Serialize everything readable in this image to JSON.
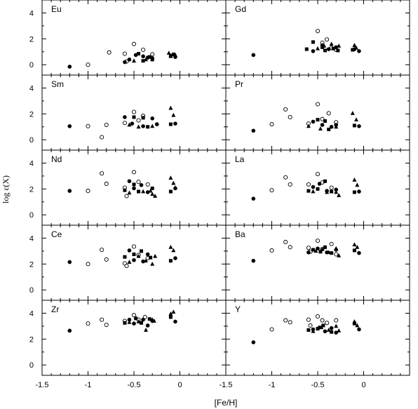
{
  "chart_data": {
    "type": "scatter",
    "xlabel": "[Fe/H]",
    "ylabel": "log ε(X)",
    "xlim": [
      -1.5,
      0.5
    ],
    "ylim": [
      -0.8,
      5.0
    ],
    "x_ticks": [
      -1.5,
      -1,
      -0.5,
      0
    ],
    "x_tick_labels": [
      "-1.5",
      "-1",
      "-0.5",
      "0"
    ],
    "y_ticks": [
      0,
      2,
      4
    ],
    "y_tick_labels": [
      "0",
      "2",
      "4"
    ],
    "grid": false,
    "legend": "none",
    "marker_styles": {
      "open_circle": "open circle",
      "filled_circle": "filled circle",
      "filled_square": "filled square",
      "filled_triangle": "filled triangle"
    },
    "panels": [
      {
        "element": "Eu",
        "open_circle": [
          [
            -1.0,
            0.0
          ],
          [
            -0.77,
            0.95
          ],
          [
            -0.6,
            0.85
          ],
          [
            -0.58,
            0.25
          ],
          [
            -0.5,
            1.6
          ],
          [
            -0.4,
            1.15
          ],
          [
            -0.3,
            0.8
          ]
        ],
        "filled_circle": [
          [
            -1.2,
            -0.15
          ],
          [
            -0.6,
            0.2
          ],
          [
            -0.55,
            0.4
          ],
          [
            -0.48,
            0.75
          ],
          [
            -0.4,
            0.65
          ],
          [
            -0.35,
            0.55
          ],
          [
            -0.3,
            0.5
          ],
          [
            -0.05,
            0.6
          ]
        ],
        "filled_square": [
          [
            -0.45,
            0.85
          ],
          [
            -0.4,
            0.3
          ],
          [
            -0.33,
            0.6
          ],
          [
            -0.3,
            0.4
          ],
          [
            -0.1,
            0.7
          ],
          [
            -0.07,
            0.8
          ]
        ],
        "filled_triangle": [
          [
            -0.5,
            0.3
          ],
          [
            -0.37,
            0.4
          ],
          [
            -0.3,
            0.55
          ],
          [
            -0.12,
            0.9
          ],
          [
            -0.1,
            0.65
          ],
          [
            -0.05,
            0.75
          ]
        ]
      },
      {
        "element": "Gd",
        "open_circle": [
          [
            -0.5,
            2.6
          ],
          [
            -0.4,
            1.95
          ],
          [
            -0.35,
            1.3
          ],
          [
            -0.3,
            1.15
          ],
          [
            -0.45,
            1.7
          ]
        ],
        "filled_circle": [
          [
            -1.2,
            0.75
          ],
          [
            -0.55,
            1.05
          ],
          [
            -0.45,
            1.5
          ],
          [
            -0.38,
            1.2
          ],
          [
            -0.3,
            1.35
          ],
          [
            -0.1,
            1.2
          ],
          [
            -0.05,
            1.05
          ]
        ],
        "filled_square": [
          [
            -0.62,
            1.2
          ],
          [
            -0.55,
            1.75
          ],
          [
            -0.45,
            1.35
          ],
          [
            -0.42,
            1.1
          ],
          [
            -0.33,
            1.25
          ],
          [
            -0.28,
            1.1
          ],
          [
            -0.12,
            1.15
          ]
        ],
        "filled_triangle": [
          [
            -0.5,
            1.25
          ],
          [
            -0.43,
            1.45
          ],
          [
            -0.35,
            1.6
          ],
          [
            -0.27,
            1.45
          ],
          [
            -0.1,
            1.5
          ],
          [
            -0.08,
            1.3
          ]
        ]
      },
      {
        "element": "Sm",
        "open_circle": [
          [
            -1.0,
            1.05
          ],
          [
            -0.85,
            0.2
          ],
          [
            -0.8,
            1.15
          ],
          [
            -0.6,
            1.3
          ],
          [
            -0.5,
            2.15
          ],
          [
            -0.45,
            1.5
          ],
          [
            -0.4,
            1.85
          ]
        ],
        "filled_circle": [
          [
            -1.2,
            1.05
          ],
          [
            -0.6,
            1.75
          ],
          [
            -0.52,
            1.25
          ],
          [
            -0.4,
            1.05
          ],
          [
            -0.3,
            1.65
          ],
          [
            -0.25,
            1.2
          ],
          [
            -0.05,
            1.25
          ]
        ],
        "filled_square": [
          [
            -0.5,
            1.75
          ],
          [
            -0.4,
            1.7
          ],
          [
            -0.35,
            1.0
          ],
          [
            -0.1,
            1.2
          ]
        ],
        "filled_triangle": [
          [
            -0.55,
            1.15
          ],
          [
            -0.45,
            1.0
          ],
          [
            -0.3,
            1.05
          ],
          [
            -0.1,
            2.45
          ],
          [
            -0.07,
            1.9
          ]
        ]
      },
      {
        "element": "Pr",
        "open_circle": [
          [
            -1.0,
            1.2
          ],
          [
            -0.85,
            2.35
          ],
          [
            -0.8,
            1.75
          ],
          [
            -0.6,
            1.25
          ],
          [
            -0.5,
            2.75
          ],
          [
            -0.45,
            1.6
          ],
          [
            -0.38,
            2.05
          ],
          [
            -0.3,
            1.35
          ]
        ],
        "filled_circle": [
          [
            -1.2,
            0.7
          ],
          [
            -0.55,
            1.4
          ],
          [
            -0.45,
            1.15
          ],
          [
            -0.35,
            1.0
          ],
          [
            -0.3,
            1.15
          ],
          [
            -0.05,
            1.05
          ]
        ],
        "filled_square": [
          [
            -0.5,
            1.55
          ],
          [
            -0.42,
            1.45
          ],
          [
            -0.38,
            0.8
          ],
          [
            -0.1,
            1.1
          ]
        ],
        "filled_triangle": [
          [
            -0.6,
            1.05
          ],
          [
            -0.47,
            0.85
          ],
          [
            -0.3,
            1.0
          ],
          [
            -0.12,
            2.05
          ],
          [
            -0.08,
            1.55
          ]
        ]
      },
      {
        "element": "Nd",
        "open_circle": [
          [
            -1.0,
            1.85
          ],
          [
            -0.85,
            3.2
          ],
          [
            -0.8,
            2.4
          ],
          [
            -0.6,
            2.1
          ],
          [
            -0.58,
            1.45
          ],
          [
            -0.5,
            3.3
          ],
          [
            -0.45,
            2.55
          ],
          [
            -0.35,
            2.35
          ]
        ],
        "filled_circle": [
          [
            -1.2,
            1.85
          ],
          [
            -0.55,
            2.6
          ],
          [
            -0.5,
            2.05
          ],
          [
            -0.42,
            2.3
          ],
          [
            -0.35,
            1.75
          ],
          [
            -0.05,
            2.05
          ]
        ],
        "filled_square": [
          [
            -0.6,
            1.9
          ],
          [
            -0.5,
            2.35
          ],
          [
            -0.45,
            1.8
          ],
          [
            -0.3,
            2.05
          ],
          [
            -0.1,
            1.8
          ]
        ],
        "filled_triangle": [
          [
            -0.55,
            1.7
          ],
          [
            -0.4,
            1.8
          ],
          [
            -0.32,
            1.85
          ],
          [
            -0.3,
            1.6
          ],
          [
            -0.27,
            1.45
          ],
          [
            -0.1,
            2.85
          ],
          [
            -0.07,
            2.45
          ],
          [
            -0.05,
            2.1
          ]
        ]
      },
      {
        "element": "La",
        "open_circle": [
          [
            -1.0,
            1.9
          ],
          [
            -0.85,
            2.9
          ],
          [
            -0.8,
            2.35
          ],
          [
            -0.6,
            2.35
          ],
          [
            -0.5,
            3.15
          ],
          [
            -0.45,
            2.5
          ],
          [
            -0.35,
            2.1
          ]
        ],
        "filled_circle": [
          [
            -1.2,
            1.25
          ],
          [
            -0.55,
            2.15
          ],
          [
            -0.48,
            2.4
          ],
          [
            -0.4,
            1.85
          ],
          [
            -0.3,
            1.95
          ],
          [
            -0.05,
            1.8
          ]
        ],
        "filled_square": [
          [
            -0.6,
            1.85
          ],
          [
            -0.5,
            2.0
          ],
          [
            -0.42,
            2.6
          ],
          [
            -0.35,
            1.8
          ],
          [
            -0.1,
            1.75
          ]
        ],
        "filled_triangle": [
          [
            -0.55,
            1.8
          ],
          [
            -0.4,
            1.75
          ],
          [
            -0.3,
            1.75
          ],
          [
            -0.27,
            1.5
          ],
          [
            -0.1,
            2.7
          ],
          [
            -0.07,
            2.3
          ]
        ]
      },
      {
        "element": "Ce",
        "open_circle": [
          [
            -1.0,
            2.0
          ],
          [
            -0.85,
            3.1
          ],
          [
            -0.8,
            2.35
          ],
          [
            -0.6,
            2.05
          ],
          [
            -0.58,
            1.85
          ],
          [
            -0.5,
            3.35
          ],
          [
            -0.45,
            2.7
          ],
          [
            -0.35,
            2.45
          ]
        ],
        "filled_circle": [
          [
            -1.2,
            2.15
          ],
          [
            -0.55,
            3.05
          ],
          [
            -0.5,
            2.3
          ],
          [
            -0.4,
            2.2
          ],
          [
            -0.35,
            2.75
          ],
          [
            -0.05,
            2.45
          ]
        ],
        "filled_square": [
          [
            -0.6,
            2.55
          ],
          [
            -0.5,
            2.75
          ],
          [
            -0.42,
            3.0
          ],
          [
            -0.32,
            2.5
          ],
          [
            -0.1,
            2.25
          ]
        ],
        "filled_triangle": [
          [
            -0.55,
            2.15
          ],
          [
            -0.45,
            2.6
          ],
          [
            -0.37,
            2.25
          ],
          [
            -0.3,
            2.0
          ],
          [
            -0.27,
            2.6
          ],
          [
            -0.1,
            3.3
          ],
          [
            -0.07,
            3.05
          ]
        ]
      },
      {
        "element": "Ba",
        "open_circle": [
          [
            -1.0,
            3.05
          ],
          [
            -0.85,
            3.7
          ],
          [
            -0.8,
            3.3
          ],
          [
            -0.6,
            3.25
          ],
          [
            -0.58,
            2.95
          ],
          [
            -0.5,
            3.8
          ],
          [
            -0.45,
            3.15
          ],
          [
            -0.35,
            3.55
          ],
          [
            -0.3,
            2.75
          ]
        ],
        "filled_circle": [
          [
            -1.2,
            2.25
          ],
          [
            -0.6,
            2.9
          ],
          [
            -0.5,
            3.2
          ],
          [
            -0.4,
            2.9
          ],
          [
            -0.3,
            3.1
          ],
          [
            -0.05,
            2.85
          ]
        ],
        "filled_square": [
          [
            -0.55,
            3.1
          ],
          [
            -0.47,
            2.95
          ],
          [
            -0.42,
            3.3
          ],
          [
            -0.35,
            2.85
          ],
          [
            -0.1,
            3.05
          ]
        ],
        "filled_triangle": [
          [
            -0.52,
            3.0
          ],
          [
            -0.45,
            3.15
          ],
          [
            -0.38,
            2.9
          ],
          [
            -0.3,
            3.2
          ],
          [
            -0.27,
            2.65
          ],
          [
            -0.1,
            3.5
          ],
          [
            -0.07,
            3.3
          ]
        ]
      },
      {
        "element": "Zr",
        "open_circle": [
          [
            -1.0,
            3.2
          ],
          [
            -0.85,
            3.5
          ],
          [
            -0.8,
            3.1
          ],
          [
            -0.6,
            3.4
          ],
          [
            -0.5,
            3.85
          ],
          [
            -0.45,
            3.5
          ],
          [
            -0.38,
            3.7
          ]
        ],
        "filled_circle": [
          [
            -1.2,
            2.65
          ],
          [
            -0.55,
            3.5
          ],
          [
            -0.5,
            3.2
          ],
          [
            -0.4,
            3.5
          ],
          [
            -0.35,
            3.05
          ],
          [
            -0.3,
            3.4
          ],
          [
            -0.05,
            3.35
          ]
        ],
        "filled_square": [
          [
            -0.6,
            3.25
          ],
          [
            -0.48,
            3.6
          ],
          [
            -0.42,
            3.25
          ],
          [
            -0.33,
            3.55
          ],
          [
            -0.1,
            3.7
          ]
        ],
        "filled_triangle": [
          [
            -0.55,
            3.3
          ],
          [
            -0.45,
            3.35
          ],
          [
            -0.37,
            2.7
          ],
          [
            -0.3,
            3.5
          ],
          [
            -0.28,
            3.4
          ],
          [
            -0.1,
            3.95
          ],
          [
            -0.07,
            4.1
          ]
        ]
      },
      {
        "element": "Y",
        "open_circle": [
          [
            -1.0,
            2.75
          ],
          [
            -0.85,
            3.45
          ],
          [
            -0.8,
            3.3
          ],
          [
            -0.6,
            3.5
          ],
          [
            -0.58,
            3.05
          ],
          [
            -0.5,
            3.75
          ],
          [
            -0.45,
            3.45
          ],
          [
            -0.4,
            3.25
          ],
          [
            -0.3,
            3.45
          ]
        ],
        "filled_circle": [
          [
            -1.2,
            1.75
          ],
          [
            -0.55,
            2.75
          ],
          [
            -0.48,
            2.9
          ],
          [
            -0.42,
            2.6
          ],
          [
            -0.35,
            2.85
          ],
          [
            -0.3,
            2.5
          ],
          [
            -0.05,
            2.75
          ]
        ],
        "filled_square": [
          [
            -0.6,
            2.7
          ],
          [
            -0.5,
            2.8
          ],
          [
            -0.44,
            3.05
          ],
          [
            -0.35,
            2.55
          ],
          [
            -0.1,
            3.2
          ]
        ],
        "filled_triangle": [
          [
            -0.55,
            2.6
          ],
          [
            -0.46,
            2.9
          ],
          [
            -0.38,
            2.7
          ],
          [
            -0.3,
            3.0
          ],
          [
            -0.27,
            2.65
          ],
          [
            -0.1,
            3.35
          ],
          [
            -0.07,
            3.05
          ]
        ]
      }
    ]
  }
}
